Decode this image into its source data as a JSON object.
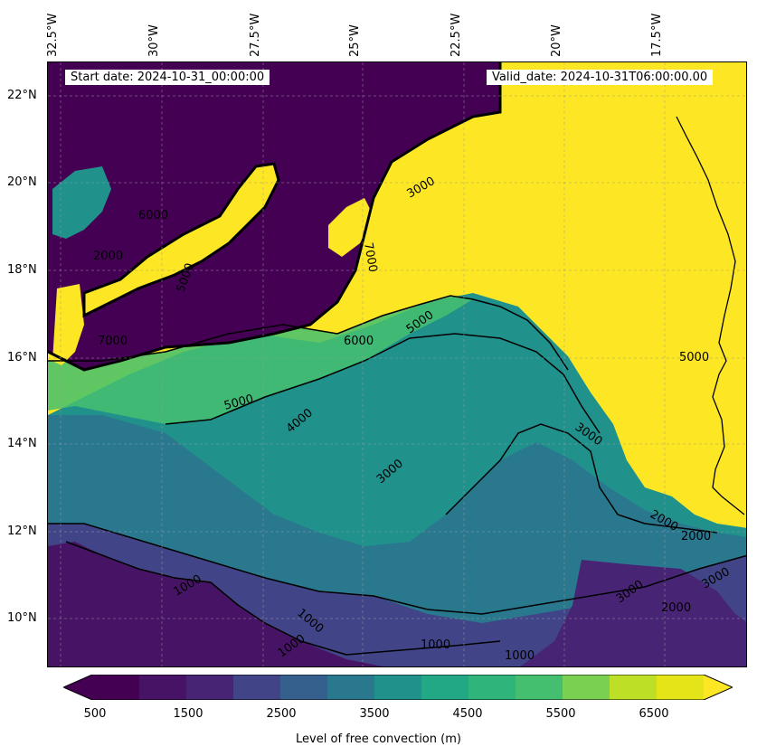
{
  "header": {
    "start_date": "Start date: 2024-10-31_00:00:00",
    "valid_date": "Valid_date: 2024-10-31T06:00:00.00"
  },
  "map": {
    "top_longitude_labels": [
      "32.5°W",
      "30°W",
      "27.5°W",
      "25°W",
      "22.5°W",
      "20°W",
      "17.5°W"
    ],
    "latitude_labels": [
      "22°N",
      "20°N",
      "18°N",
      "16°N",
      "14°N",
      "12°N",
      "10°N"
    ],
    "contour_labels": [
      "1000",
      "1000",
      "1000",
      "1000",
      "1000",
      "2000",
      "2000",
      "2000",
      "2000",
      "3000",
      "3000",
      "3000",
      "3000",
      "3000",
      "4000",
      "5000",
      "5000",
      "5000",
      "6000",
      "6000",
      "5000",
      "7000",
      "7000"
    ],
    "colors": {
      "c500": "#440154",
      "c1000": "#471365",
      "c1500": "#482475",
      "c2000": "#414487",
      "c2500": "#355f8d",
      "c3000": "#2a788e",
      "c3500": "#21918c",
      "c4000": "#22a884",
      "c4500": "#2fb47c",
      "c5000": "#44bf70",
      "c5500": "#7ad151",
      "c6000": "#bddf26",
      "c6500": "#e4e419",
      "c7000": "#fde725",
      "coast": "#000000"
    }
  },
  "colorbar": {
    "ticks": [
      "500",
      "1500",
      "2500",
      "3500",
      "4500",
      "5500",
      "6500"
    ],
    "label": "Level of free convection (m)",
    "colors": [
      "#440154",
      "#471365",
      "#482475",
      "#414487",
      "#355f8d",
      "#2a788e",
      "#21918c",
      "#22a884",
      "#2fb47c",
      "#44bf70",
      "#7ad151",
      "#bddf26",
      "#e4e419"
    ]
  }
}
